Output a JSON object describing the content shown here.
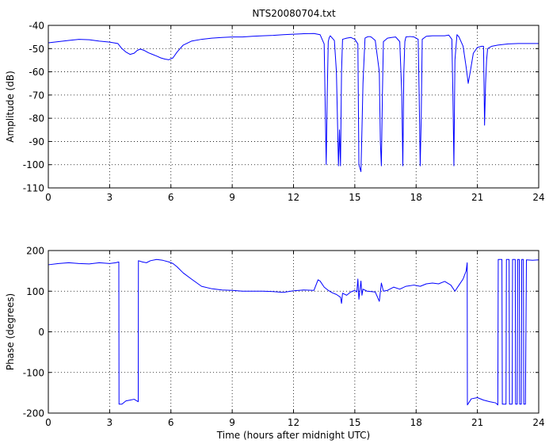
{
  "chart_data": [
    {
      "type": "line",
      "title": "NTS20080704.txt",
      "xlabel": "",
      "ylabel": "Amplitude (dB)",
      "xlim": [
        0,
        24
      ],
      "ylim": [
        -110,
        -40
      ],
      "xticks": [
        0,
        3,
        6,
        9,
        12,
        15,
        18,
        21,
        24
      ],
      "yticks": [
        -110,
        -100,
        -90,
        -80,
        -70,
        -60,
        -50,
        -40
      ],
      "grid": true,
      "series": [
        {
          "color": "#0000ff",
          "x": [
            0,
            0.5,
            1,
            1.5,
            2,
            2.5,
            3,
            3.4,
            3.6,
            3.8,
            4.0,
            4.2,
            4.35,
            4.5,
            4.7,
            4.9,
            5.1,
            5.3,
            5.5,
            5.7,
            5.9,
            6.1,
            6.3,
            6.6,
            7.0,
            7.5,
            8.0,
            8.5,
            9.0,
            9.5,
            10.0,
            10.5,
            11.0,
            11.5,
            12.0,
            12.5,
            13.0,
            13.3,
            13.5,
            13.6,
            13.65,
            13.7,
            13.75,
            13.8,
            14.0,
            14.1,
            14.2,
            14.25,
            14.3,
            14.35,
            14.4,
            14.6,
            14.8,
            15.0,
            15.15,
            15.2,
            15.3,
            15.35,
            15.4,
            15.45,
            15.5,
            15.6,
            15.7,
            15.8,
            16.0,
            16.2,
            16.25,
            16.3,
            16.35,
            16.4,
            16.6,
            16.8,
            17.0,
            17.2,
            17.3,
            17.35,
            17.4,
            17.45,
            17.5,
            17.7,
            17.9,
            18.1,
            18.15,
            18.2,
            18.25,
            18.3,
            18.5,
            18.8,
            19.1,
            19.4,
            19.6,
            19.75,
            19.8,
            19.85,
            19.9,
            20.0,
            20.1,
            20.3,
            20.45,
            20.55,
            20.65,
            20.8,
            21.0,
            21.2,
            21.3,
            21.35,
            21.4,
            21.45,
            21.5,
            21.7,
            22.0,
            22.5,
            23.0,
            23.5,
            24.0
          ],
          "y": [
            -47.5,
            -47.0,
            -46.5,
            -46.0,
            -46.2,
            -46.8,
            -47.2,
            -47.8,
            -50.0,
            -51.5,
            -52.5,
            -52.0,
            -50.8,
            -50.2,
            -50.8,
            -51.8,
            -52.5,
            -53.2,
            -54.0,
            -54.5,
            -54.8,
            -54.0,
            -51.5,
            -48.5,
            -46.8,
            -46.0,
            -45.5,
            -45.2,
            -45.0,
            -45.0,
            -44.7,
            -44.5,
            -44.3,
            -44.0,
            -43.8,
            -43.6,
            -43.5,
            -44.0,
            -48.0,
            -100.0,
            -70.0,
            -47.0,
            -45.2,
            -44.5,
            -46.5,
            -60.0,
            -100.5,
            -85.0,
            -100.5,
            -60.0,
            -46.0,
            -45.5,
            -45.2,
            -46.0,
            -48.0,
            -100.0,
            -103.0,
            -85.0,
            -65.0,
            -55.0,
            -45.5,
            -45.0,
            -44.8,
            -45.0,
            -46.5,
            -60.0,
            -90.0,
            -100.5,
            -70.0,
            -47.0,
            -45.5,
            -45.2,
            -45.0,
            -47.0,
            -70.0,
            -100.5,
            -60.0,
            -47.0,
            -45.0,
            -44.8,
            -45.0,
            -46.0,
            -70.0,
            -100.5,
            -80.0,
            -46.0,
            -44.7,
            -44.5,
            -44.5,
            -44.5,
            -44.2,
            -46.0,
            -70.0,
            -100.5,
            -55.0,
            -44.0,
            -45.0,
            -49.0,
            -58.0,
            -65.0,
            -60.0,
            -52.0,
            -49.5,
            -49.0,
            -49.0,
            -83.0,
            -65.0,
            -55.0,
            -50.0,
            -49.0,
            -48.5,
            -48.0,
            -47.8,
            -47.8,
            -47.8
          ]
        }
      ]
    },
    {
      "type": "line",
      "title": "",
      "xlabel": "Time (hours after midnight UTC)",
      "ylabel": "Phase (degrees)",
      "xlim": [
        0,
        24
      ],
      "ylim": [
        -200,
        200
      ],
      "xticks": [
        0,
        3,
        6,
        9,
        12,
        15,
        18,
        21,
        24
      ],
      "yticks": [
        -200,
        -100,
        0,
        100,
        200
      ],
      "grid": true,
      "series": [
        {
          "color": "#0000ff",
          "x": [
            0,
            0.5,
            1,
            1.5,
            2,
            2.5,
            3,
            3.3,
            3.45,
            3.46,
            3.6,
            3.8,
            4.0,
            4.2,
            4.4,
            4.41,
            4.6,
            4.8,
            5.0,
            5.3,
            5.6,
            5.9,
            6.1,
            6.3,
            6.6,
            7.0,
            7.5,
            8.0,
            8.5,
            9.0,
            9.5,
            10.0,
            10.5,
            11.0,
            11.5,
            12.0,
            12.5,
            13.0,
            13.2,
            13.3,
            13.5,
            13.7,
            13.9,
            14.1,
            14.3,
            14.35,
            14.4,
            14.6,
            14.8,
            15.0,
            15.1,
            15.15,
            15.2,
            15.3,
            15.35,
            15.4,
            15.6,
            16.0,
            16.2,
            16.3,
            16.4,
            16.6,
            16.9,
            17.2,
            17.5,
            17.9,
            18.2,
            18.5,
            18.8,
            19.1,
            19.4,
            19.7,
            19.9,
            20.1,
            20.3,
            20.45,
            20.5,
            20.51,
            20.7,
            21.0,
            21.3,
            21.6,
            21.9,
            22.0,
            22.02,
            22.2,
            22.22,
            22.4,
            22.42,
            22.55,
            22.57,
            22.7,
            22.72,
            22.85,
            22.87,
            22.95,
            22.97,
            23.05,
            23.07,
            23.15,
            23.17,
            23.25,
            23.27,
            23.35,
            23.4,
            23.7,
            24.0
          ],
          "y": [
            165,
            168,
            170,
            168,
            167,
            170,
            168,
            170,
            172,
            -178,
            -178,
            -170,
            -168,
            -166,
            -172,
            175,
            172,
            170,
            175,
            178,
            176,
            172,
            168,
            160,
            145,
            130,
            112,
            106,
            103,
            102,
            100,
            100,
            100,
            99,
            97,
            101,
            103,
            102,
            128,
            125,
            110,
            102,
            96,
            92,
            85,
            70,
            95,
            90,
            98,
            102,
            98,
            130,
            80,
            125,
            90,
            105,
            100,
            98,
            75,
            120,
            100,
            102,
            110,
            105,
            112,
            115,
            112,
            118,
            120,
            118,
            124,
            115,
            100,
            115,
            130,
            150,
            170,
            -180,
            -165,
            -162,
            -168,
            -172,
            -175,
            -180,
            178,
            178,
            -178,
            -178,
            178,
            178,
            -178,
            -178,
            178,
            178,
            -178,
            -178,
            178,
            178,
            -178,
            -178,
            178,
            178,
            -178,
            -178,
            177,
            176,
            177
          ]
        }
      ]
    }
  ]
}
